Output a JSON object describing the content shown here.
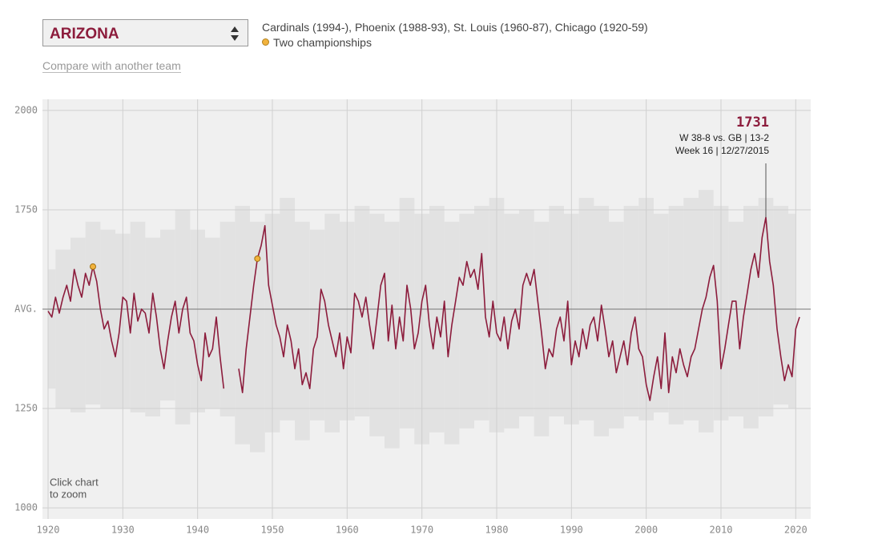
{
  "team_select": {
    "label": "ARIZONA"
  },
  "compare_link": "Compare with another team",
  "history": "Cardinals (1994-), Phoenix (1988-93), St. Louis (1960-87), Chicago (1920-59)",
  "zoom_hint": [
    "Click chart",
    "to zoom"
  ],
  "chart_data": {
    "type": "line",
    "x": [
      1920,
      1920.5,
      1921,
      1921.5,
      1922,
      1922.5,
      1923,
      1923.5,
      1924,
      1924.5,
      1925,
      1925.5,
      1926,
      1926.5,
      1927,
      1927.5,
      1928,
      1928.5,
      1929,
      1929.5,
      1930,
      1930.5,
      1931,
      1931.5,
      1932,
      1932.5,
      1933,
      1933.5,
      1934,
      1934.5,
      1935,
      1935.5,
      1936,
      1936.5,
      1937,
      1937.5,
      1938,
      1938.5,
      1939,
      1939.5,
      1940,
      1940.5,
      1941,
      1941.5,
      1942,
      1942.5,
      1943,
      1943.5,
      1944,
      1944.5,
      1945,
      1945.5,
      1946,
      1946.5,
      1947,
      1947.5,
      1948,
      1948.5,
      1949,
      1949.5,
      1950,
      1950.5,
      1951,
      1951.5,
      1952,
      1952.5,
      1953,
      1953.5,
      1954,
      1954.5,
      1955,
      1955.5,
      1956,
      1956.5,
      1957,
      1957.5,
      1958,
      1958.5,
      1959,
      1959.5,
      1960,
      1960.5,
      1961,
      1961.5,
      1962,
      1962.5,
      1963,
      1963.5,
      1964,
      1964.5,
      1965,
      1965.5,
      1966,
      1966.5,
      1967,
      1967.5,
      1968,
      1968.5,
      1969,
      1969.5,
      1970,
      1970.5,
      1971,
      1971.5,
      1972,
      1972.5,
      1973,
      1973.5,
      1974,
      1974.5,
      1975,
      1975.5,
      1976,
      1976.5,
      1977,
      1977.5,
      1978,
      1978.5,
      1979,
      1979.5,
      1980,
      1980.5,
      1981,
      1981.5,
      1982,
      1982.5,
      1983,
      1983.5,
      1984,
      1984.5,
      1985,
      1985.5,
      1986,
      1986.5,
      1987,
      1987.5,
      1988,
      1988.5,
      1989,
      1989.5,
      1990,
      1990.5,
      1991,
      1991.5,
      1992,
      1992.5,
      1993,
      1993.5,
      1994,
      1994.5,
      1995,
      1995.5,
      1996,
      1996.5,
      1997,
      1997.5,
      1998,
      1998.5,
      1999,
      1999.5,
      2000,
      2000.5,
      2001,
      2001.5,
      2002,
      2002.5,
      2003,
      2003.5,
      2004,
      2004.5,
      2005,
      2005.5,
      2006,
      2006.5,
      2007,
      2007.5,
      2008,
      2008.5,
      2009,
      2009.5,
      2010,
      2010.5,
      2011,
      2011.5,
      2012,
      2012.5,
      2013,
      2013.5,
      2014,
      2014.5,
      2015,
      2015.5,
      2016,
      2016.5,
      2017,
      2017.5,
      2018,
      2018.5,
      2019,
      2019.5,
      2020,
      2020.5
    ],
    "series": [
      {
        "color": "#8c1c3c",
        "values": [
          1495,
          1480,
          1530,
          1490,
          1530,
          1560,
          1520,
          1600,
          1560,
          1530,
          1590,
          1560,
          1607,
          1570,
          1500,
          1450,
          1470,
          1420,
          1380,
          1440,
          1530,
          1520,
          1440,
          1540,
          1470,
          1500,
          1490,
          1440,
          1540,
          1480,
          1400,
          1350,
          1420,
          1480,
          1520,
          1440,
          1500,
          1530,
          1440,
          1420,
          1360,
          1320,
          1440,
          1380,
          1400,
          1480,
          1380,
          1300,
          null,
          null,
          null,
          1350,
          1290,
          1400,
          1480,
          1560,
          1627,
          1660,
          1710,
          1560,
          1510,
          1460,
          1430,
          1380,
          1460,
          1420,
          1350,
          1400,
          1310,
          1340,
          1300,
          1400,
          1430,
          1550,
          1520,
          1460,
          1420,
          1380,
          1440,
          1350,
          1430,
          1390,
          1540,
          1520,
          1480,
          1530,
          1460,
          1400,
          1480,
          1560,
          1590,
          1420,
          1510,
          1400,
          1480,
          1420,
          1560,
          1500,
          1400,
          1440,
          1520,
          1560,
          1460,
          1400,
          1480,
          1430,
          1520,
          1380,
          1460,
          1520,
          1580,
          1560,
          1620,
          1580,
          1600,
          1550,
          1640,
          1480,
          1430,
          1520,
          1440,
          1420,
          1480,
          1400,
          1470,
          1500,
          1450,
          1560,
          1590,
          1560,
          1600,
          1520,
          1440,
          1350,
          1400,
          1380,
          1450,
          1480,
          1420,
          1520,
          1360,
          1420,
          1380,
          1450,
          1400,
          1460,
          1480,
          1420,
          1510,
          1450,
          1380,
          1420,
          1340,
          1380,
          1420,
          1360,
          1440,
          1480,
          1400,
          1380,
          1310,
          1270,
          1330,
          1380,
          1300,
          1440,
          1290,
          1380,
          1340,
          1400,
          1360,
          1330,
          1380,
          1400,
          1450,
          1500,
          1530,
          1580,
          1610,
          1520,
          1350,
          1400,
          1460,
          1520,
          1520,
          1400,
          1480,
          1540,
          1600,
          1640,
          1580,
          1680,
          1731,
          1620,
          1560,
          1450,
          1380,
          1320,
          1360,
          1330,
          1450,
          1480
        ]
      }
    ],
    "band": {
      "color": "#e2e2e2",
      "x": [
        1920,
        1922,
        1924,
        1926,
        1928,
        1930,
        1932,
        1934,
        1936,
        1938,
        1940,
        1942,
        1944,
        1946,
        1948,
        1950,
        1952,
        1954,
        1956,
        1958,
        1960,
        1962,
        1964,
        1966,
        1968,
        1970,
        1972,
        1974,
        1976,
        1978,
        1980,
        1982,
        1984,
        1986,
        1988,
        1990,
        1992,
        1994,
        1996,
        1998,
        2000,
        2002,
        2004,
        2006,
        2008,
        2010,
        2012,
        2014,
        2016,
        2018,
        2020
      ],
      "high": [
        1600,
        1650,
        1680,
        1720,
        1700,
        1690,
        1720,
        1680,
        1700,
        1750,
        1700,
        1680,
        1720,
        1760,
        1720,
        1740,
        1780,
        1720,
        1700,
        1740,
        1720,
        1760,
        1740,
        1720,
        1780,
        1740,
        1760,
        1720,
        1740,
        1760,
        1780,
        1740,
        1750,
        1720,
        1760,
        1740,
        1780,
        1760,
        1720,
        1760,
        1780,
        1740,
        1760,
        1780,
        1800,
        1760,
        1720,
        1760,
        1780,
        1760,
        1740
      ],
      "low": [
        1300,
        1250,
        1240,
        1260,
        1250,
        1250,
        1240,
        1230,
        1270,
        1210,
        1240,
        1250,
        1230,
        1160,
        1140,
        1190,
        1220,
        1170,
        1220,
        1190,
        1220,
        1230,
        1180,
        1150,
        1200,
        1160,
        1190,
        1160,
        1200,
        1220,
        1190,
        1200,
        1230,
        1180,
        1230,
        1210,
        1220,
        1180,
        1200,
        1230,
        1220,
        1240,
        1210,
        1220,
        1190,
        1220,
        1230,
        1200,
        1230,
        1260,
        1250
      ]
    },
    "highlights": {
      "name": "Two championships",
      "color": "#f2b33d",
      "x": [
        1926,
        1948
      ],
      "values": [
        1607,
        1627
      ]
    },
    "annotation": {
      "x": 2016,
      "value": 1731,
      "lines": [
        "W 38-8 vs. GB | 13-2",
        "Week 16 | 12/27/2015"
      ]
    },
    "xlim": [
      1919.25,
      2022
    ],
    "ylim": [
      972,
      2028
    ],
    "xticks": [
      1920,
      1930,
      1940,
      1950,
      1960,
      1970,
      1980,
      1990,
      2000,
      2010,
      2020
    ],
    "yticks": [
      1000,
      1250,
      {
        "value": 1500,
        "label": "AVG."
      },
      1750,
      2000
    ],
    "grid": true
  }
}
